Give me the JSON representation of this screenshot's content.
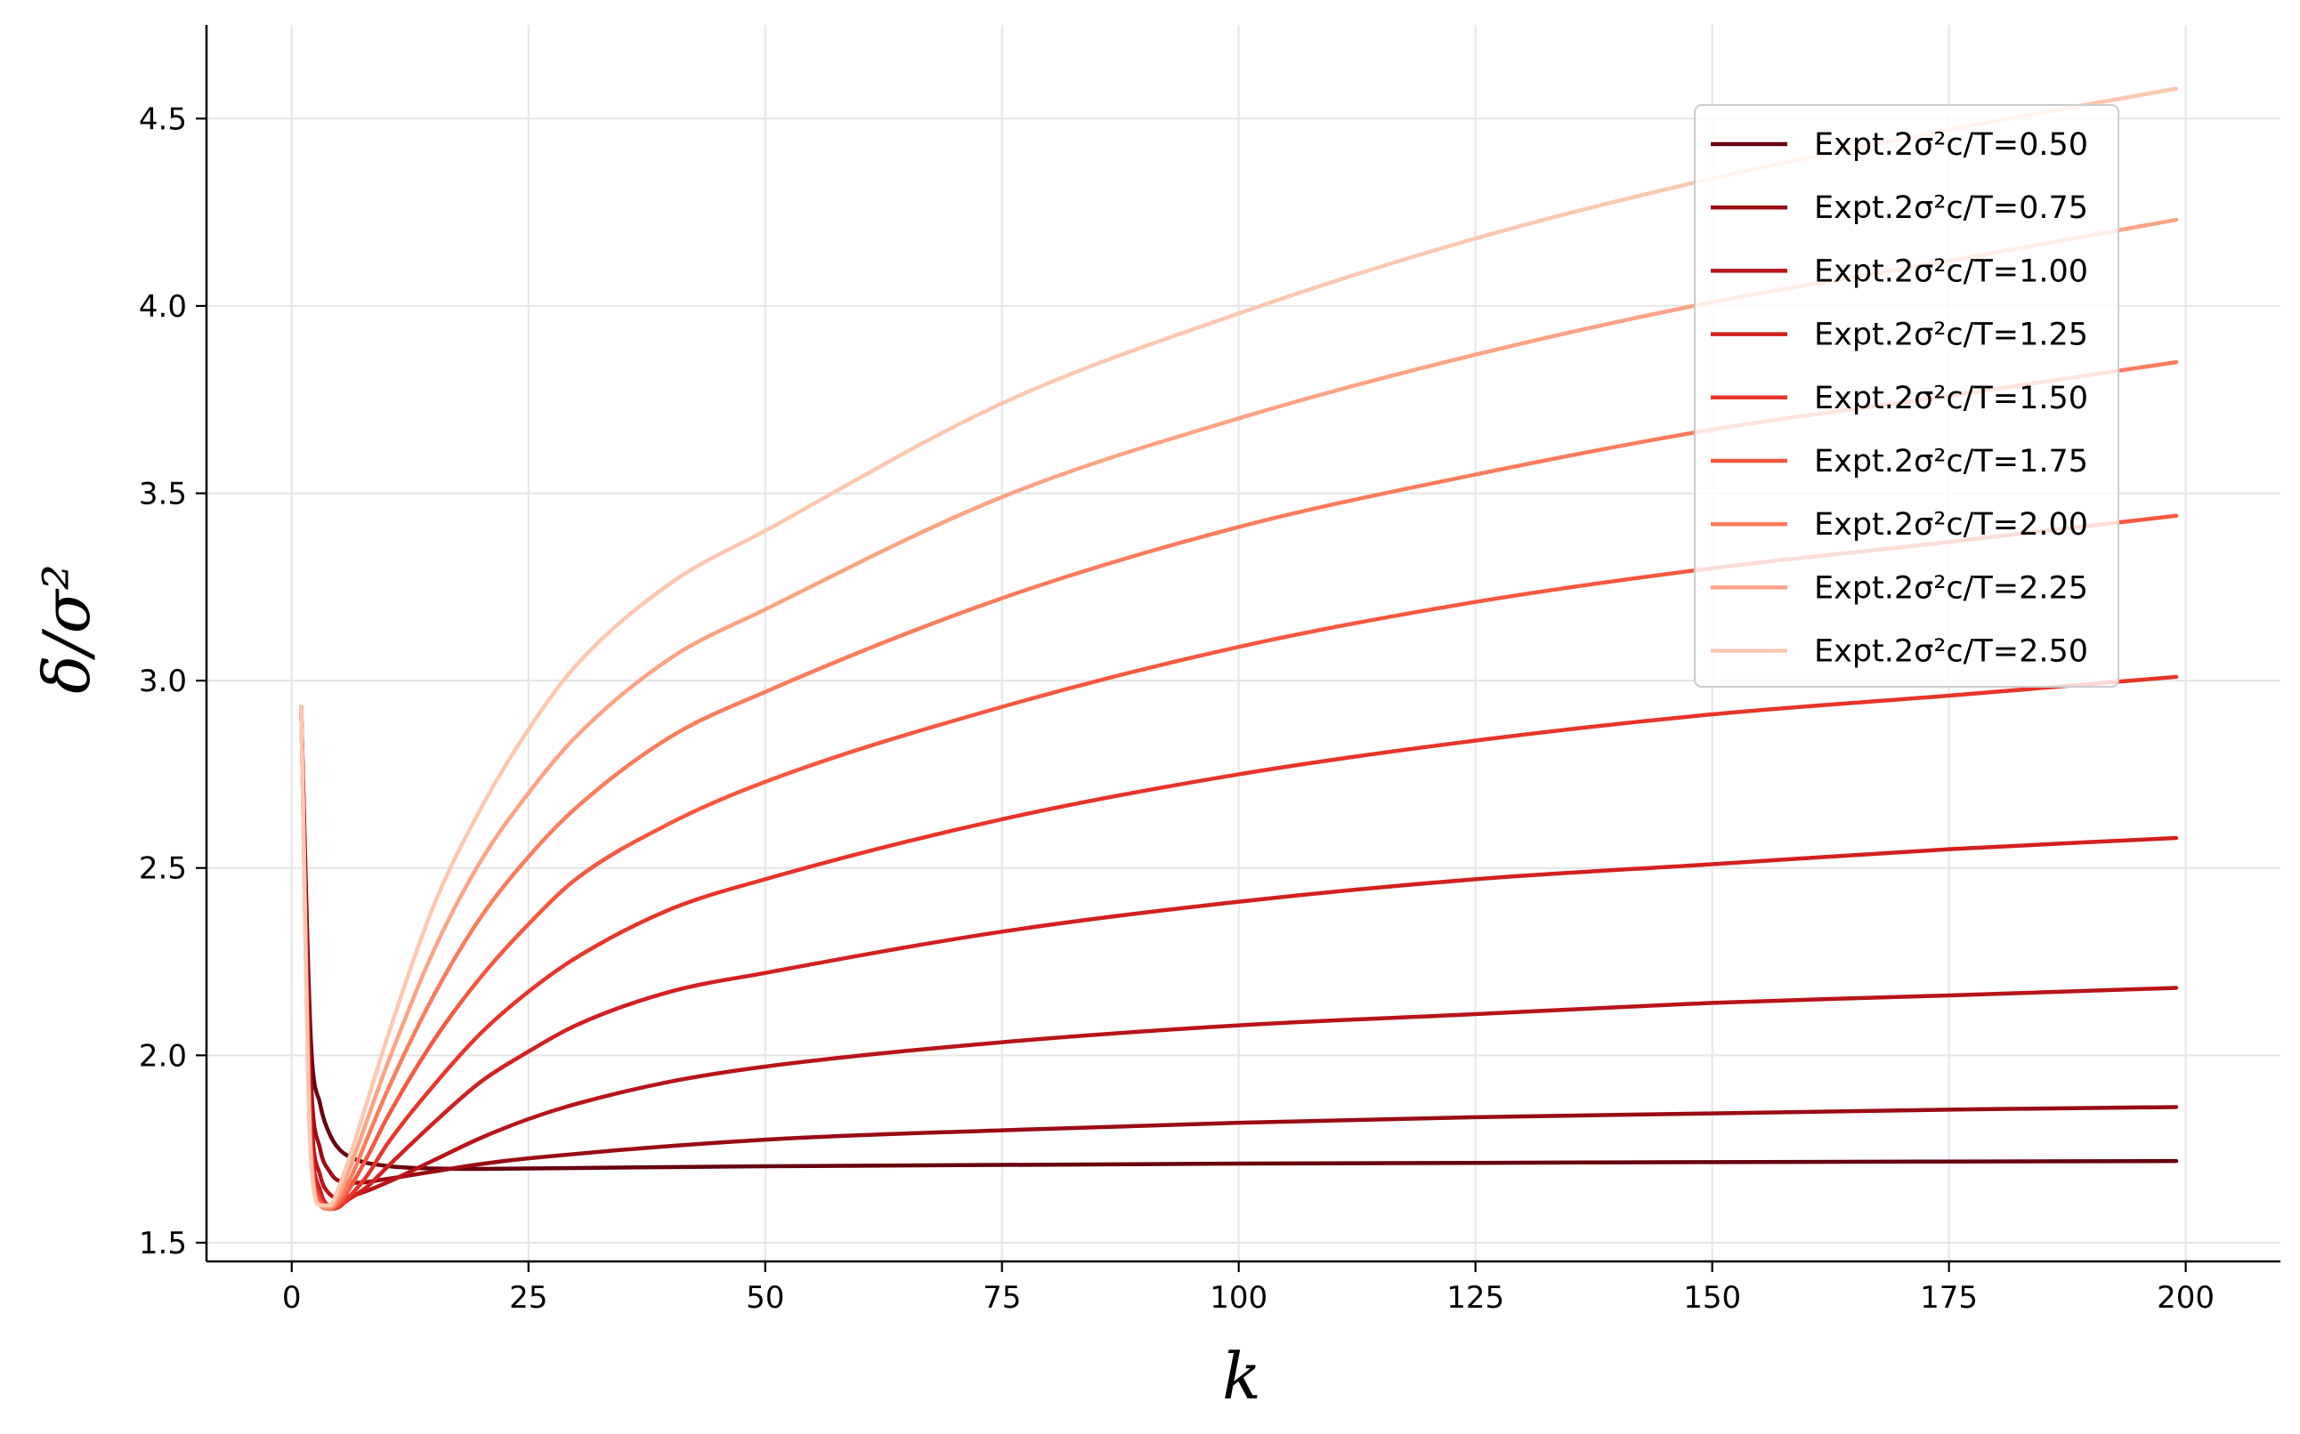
{
  "chart_data": {
    "type": "line",
    "xlabel": "k",
    "ylabel": "δ/σ²",
    "xlim": [
      -9,
      210
    ],
    "ylim": [
      1.45,
      4.75
    ],
    "xticks": [
      "0",
      "25",
      "50",
      "75",
      "100",
      "125",
      "150",
      "175",
      "200"
    ],
    "yticks": [
      "1.5",
      "2.0",
      "2.5",
      "3.0",
      "3.5",
      "4.0",
      "4.5"
    ],
    "grid": true,
    "legend_position": "top-right",
    "series": [
      {
        "name": "Expt.2σ²c/T=0.50",
        "color": "#67000d",
        "x": [
          1,
          2,
          3,
          4,
          5,
          7,
          10,
          15,
          20,
          25,
          50,
          100,
          150,
          199
        ],
        "y": [
          2.93,
          2.05,
          1.87,
          1.79,
          1.75,
          1.72,
          1.705,
          1.698,
          1.697,
          1.698,
          1.704,
          1.711,
          1.715,
          1.718
        ]
      },
      {
        "name": "Expt.2σ²c/T=0.75",
        "color": "#9a0c14",
        "x": [
          1,
          2,
          3,
          4,
          5,
          7,
          10,
          15,
          20,
          25,
          50,
          75,
          100,
          125,
          150,
          175,
          199
        ],
        "y": [
          2.93,
          1.95,
          1.75,
          1.69,
          1.665,
          1.66,
          1.67,
          1.69,
          1.71,
          1.725,
          1.775,
          1.8,
          1.82,
          1.835,
          1.845,
          1.855,
          1.862
        ]
      },
      {
        "name": "Expt.2σ²c/T=1.00",
        "color": "#b81419",
        "x": [
          1,
          2,
          3,
          4,
          5,
          7,
          10,
          15,
          20,
          25,
          30,
          40,
          50,
          75,
          100,
          125,
          150,
          175,
          199
        ],
        "y": [
          2.93,
          1.87,
          1.68,
          1.63,
          1.62,
          1.63,
          1.66,
          1.72,
          1.78,
          1.83,
          1.87,
          1.93,
          1.97,
          2.035,
          2.08,
          2.11,
          2.14,
          2.16,
          2.18
        ]
      },
      {
        "name": "Expt.2σ²c/T=1.25",
        "color": "#d32020",
        "x": [
          1,
          2,
          3,
          4,
          5,
          6,
          8,
          10,
          15,
          20,
          25,
          30,
          40,
          50,
          75,
          100,
          125,
          150,
          175,
          199
        ],
        "y": [
          2.93,
          1.82,
          1.64,
          1.6,
          1.6,
          1.615,
          1.65,
          1.7,
          1.82,
          1.93,
          2.01,
          2.08,
          2.17,
          2.22,
          2.33,
          2.41,
          2.47,
          2.51,
          2.55,
          2.58
        ]
      },
      {
        "name": "Expt.2σ²c/T=1.50",
        "color": "#e83429",
        "x": [
          1,
          2,
          3,
          4,
          5,
          6,
          8,
          10,
          15,
          20,
          25,
          30,
          40,
          50,
          75,
          100,
          125,
          150,
          175,
          199
        ],
        "y": [
          2.93,
          1.78,
          1.62,
          1.59,
          1.595,
          1.62,
          1.68,
          1.76,
          1.92,
          2.06,
          2.17,
          2.26,
          2.39,
          2.47,
          2.63,
          2.75,
          2.84,
          2.91,
          2.96,
          3.01
        ]
      },
      {
        "name": "Expt.2σ²c/T=1.75",
        "color": "#f6583f",
        "x": [
          1,
          2,
          3,
          4,
          5,
          6,
          8,
          10,
          15,
          20,
          25,
          30,
          40,
          50,
          75,
          100,
          125,
          150,
          175,
          199
        ],
        "y": [
          2.93,
          1.76,
          1.61,
          1.59,
          1.605,
          1.64,
          1.73,
          1.83,
          2.04,
          2.21,
          2.35,
          2.47,
          2.62,
          2.73,
          2.93,
          3.09,
          3.21,
          3.3,
          3.37,
          3.44
        ]
      },
      {
        "name": "Expt.2σ²c/T=2.00",
        "color": "#fb7c5c",
        "x": [
          1,
          2,
          3,
          4,
          5,
          6,
          8,
          10,
          15,
          20,
          25,
          30,
          40,
          50,
          75,
          100,
          125,
          150,
          175,
          199
        ],
        "y": [
          2.93,
          1.75,
          1.6,
          1.59,
          1.615,
          1.66,
          1.78,
          1.9,
          2.16,
          2.37,
          2.53,
          2.66,
          2.85,
          2.97,
          3.22,
          3.41,
          3.55,
          3.67,
          3.76,
          3.85
        ]
      },
      {
        "name": "Expt.2σ²c/T=2.25",
        "color": "#fca384",
        "x": [
          1,
          2,
          3,
          4,
          5,
          6,
          8,
          10,
          15,
          20,
          25,
          30,
          40,
          50,
          75,
          100,
          125,
          150,
          175,
          199
        ],
        "y": [
          2.93,
          1.74,
          1.6,
          1.595,
          1.63,
          1.69,
          1.83,
          1.97,
          2.28,
          2.52,
          2.7,
          2.85,
          3.06,
          3.19,
          3.49,
          3.7,
          3.87,
          4.01,
          4.12,
          4.23
        ]
      },
      {
        "name": "Expt.2σ²c/T=2.50",
        "color": "#fdc8b0",
        "x": [
          1,
          2,
          3,
          4,
          5,
          6,
          8,
          10,
          15,
          20,
          25,
          30,
          40,
          50,
          75,
          100,
          125,
          150,
          175,
          199
        ],
        "y": [
          2.93,
          1.73,
          1.6,
          1.6,
          1.65,
          1.72,
          1.88,
          2.04,
          2.4,
          2.66,
          2.87,
          3.04,
          3.26,
          3.4,
          3.74,
          3.98,
          4.18,
          4.34,
          4.47,
          4.58
        ]
      }
    ]
  }
}
